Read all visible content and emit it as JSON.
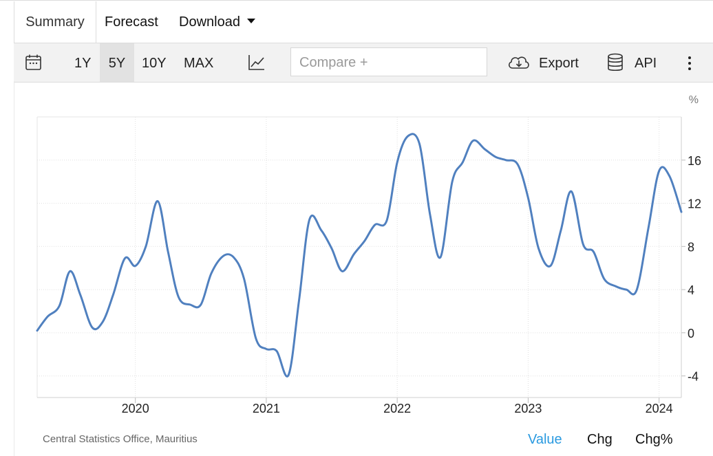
{
  "tabs": {
    "summary": "Summary",
    "forecast": "Forecast",
    "download": "Download"
  },
  "toolbar": {
    "calendar_icon": "calendar-icon",
    "ranges": [
      "1Y",
      "5Y",
      "10Y",
      "MAX"
    ],
    "selected_range": "5Y",
    "chart_type_icon": "line-chart-icon",
    "compare_placeholder": "Compare +",
    "export_label": "Export",
    "export_icon": "cloud-download-icon",
    "api_label": "API",
    "api_icon": "database-icon",
    "more_icon": "vertical-dots-icon"
  },
  "footer": {
    "source": "Central Statistics Office, Mauritius",
    "modes": [
      "Value",
      "Chg",
      "Chg%"
    ],
    "active_mode": "Value",
    "active_color": "#2a9ae0"
  },
  "chart_data": {
    "type": "line",
    "unit_label": "%",
    "y_ticks": [
      16,
      12,
      8,
      4,
      0,
      -4
    ],
    "ylim": [
      -6,
      20
    ],
    "x_ticks": [
      "2020",
      "2021",
      "2022",
      "2023",
      "2024"
    ],
    "xlim": [
      2019.25,
      2024.17
    ],
    "grid": true,
    "line_color": "#5080bf",
    "series": [
      {
        "x": [
          2019.25,
          2019.33,
          2019.42,
          2019.5,
          2019.58,
          2019.67,
          2019.75,
          2019.83,
          2019.92,
          2020.0,
          2020.08,
          2020.17,
          2020.25,
          2020.33,
          2020.42,
          2020.5,
          2020.58,
          2020.67,
          2020.75,
          2020.83,
          2020.92,
          2021.0,
          2021.08,
          2021.17,
          2021.25,
          2021.33,
          2021.42,
          2021.5,
          2021.58,
          2021.67,
          2021.75,
          2021.83,
          2021.92,
          2022.0,
          2022.08,
          2022.17,
          2022.25,
          2022.33,
          2022.42,
          2022.5,
          2022.58,
          2022.67,
          2022.75,
          2022.83,
          2022.92,
          2023.0,
          2023.08,
          2023.17,
          2023.25,
          2023.33,
          2023.42,
          2023.5,
          2023.58,
          2023.67,
          2023.75,
          2023.83,
          2023.92,
          2024.0,
          2024.08,
          2024.17
        ],
        "values": [
          0.2,
          1.5,
          2.5,
          5.7,
          3.5,
          0.5,
          1.0,
          3.5,
          6.9,
          6.2,
          8.0,
          12.2,
          7.5,
          3.3,
          2.6,
          2.6,
          5.5,
          7.1,
          7.0,
          5.0,
          -0.5,
          -1.5,
          -1.7,
          -3.9,
          3.0,
          10.5,
          9.5,
          7.8,
          5.7,
          7.3,
          8.5,
          10.0,
          10.4,
          15.8,
          18.2,
          17.5,
          11.0,
          7.0,
          14.0,
          15.8,
          17.8,
          17.0,
          16.3,
          16.0,
          15.6,
          12.5,
          7.8,
          6.2,
          9.5,
          13.1,
          8.2,
          7.5,
          5.0,
          4.3,
          4.0,
          4.0,
          9.8,
          15.0,
          14.5,
          11.2
        ]
      }
    ]
  }
}
